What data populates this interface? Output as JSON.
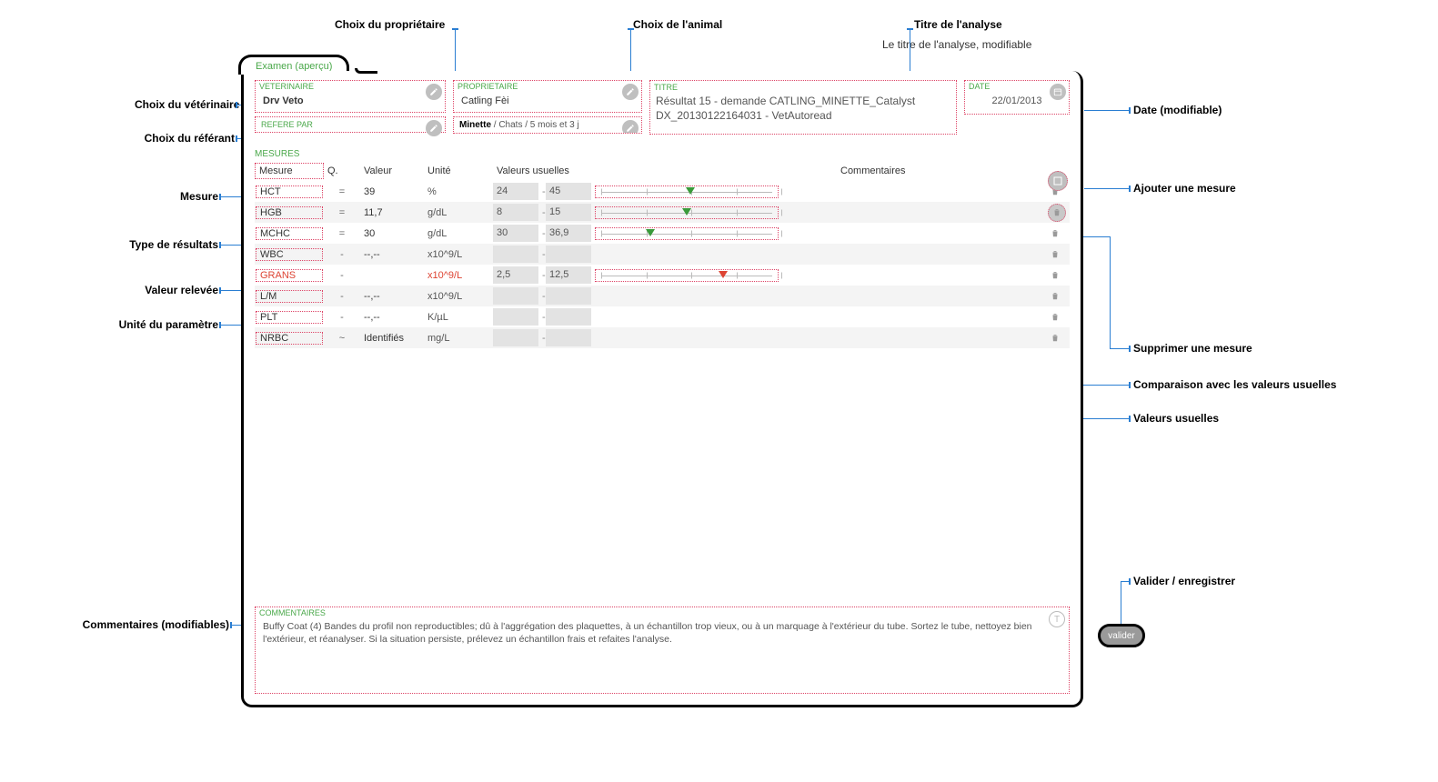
{
  "tab_label": "Examen (aperçu)",
  "callouts": {
    "vet": "Choix du vétérinaire",
    "ref": "Choix du référant",
    "owner": "Choix du propriétaire",
    "animal": "Choix de l'animal",
    "title": "Titre de l'analyse",
    "title_sub": "Le titre de l'analyse, modifiable",
    "date": "Date (modifiable)",
    "mesure": "Mesure",
    "type": "Type de résultats",
    "valeur": "Valeur relevée",
    "unite": "Unité du paramètre",
    "add": "Ajouter une mesure",
    "del": "Supprimer une mesure",
    "compare": "Comparaison avec les valeurs usuelles",
    "usual": "Valeurs usuelles",
    "comments": "Commentaires (modifiables)",
    "valider": "Valider / enregistrer"
  },
  "fields": {
    "vet_label": "VETERINAIRE",
    "vet_value": "Drv Veto",
    "ref_label": "REFERE PAR",
    "ref_value": "",
    "owner_label": "PROPRIETAIRE",
    "owner_value": "Catling Fèi",
    "animal_name": "Minette",
    "animal_detail": " / Chats / 5 mois et 3 j",
    "titre_label": "TITRE",
    "titre_value": "Résultat 15 - demande CATLING_MINETTE_Catalyst DX_20130122164031 - VetAutoread",
    "date_label": "DATE",
    "date_value": "22/01/2013"
  },
  "mesures": {
    "section_label": "MESURES",
    "hdr_mesure": "Mesure",
    "hdr_q": "Q.",
    "hdr_valeur": "Valeur",
    "hdr_unite": "Unité",
    "hdr_usual": "Valeurs usuelles",
    "hdr_comment": "Commentaires",
    "rows": [
      {
        "name": "HCT",
        "q": "=",
        "val": "39",
        "unit": "%",
        "lo": "24",
        "hi": "45",
        "marker": 0.52,
        "mkclass": "",
        "abn": false
      },
      {
        "name": "HGB",
        "q": "=",
        "val": "11,7",
        "unit": "g/dL",
        "lo": "8",
        "hi": "15",
        "marker": 0.5,
        "mkclass": "",
        "abn": false
      },
      {
        "name": "MCHC",
        "q": "=",
        "val": "30",
        "unit": "g/dL",
        "lo": "30",
        "hi": "36,9",
        "marker": 0.3,
        "mkclass": "",
        "abn": false
      },
      {
        "name": "WBC",
        "q": "-",
        "val": "--,--",
        "unit": "x10^9/L",
        "lo": "",
        "hi": "",
        "marker": null,
        "mkclass": "",
        "abn": false
      },
      {
        "name": "GRANS",
        "q": "-",
        "val": "",
        "unit": "x10^9/L",
        "lo": "2,5",
        "hi": "12,5",
        "marker": 0.7,
        "mkclass": "red",
        "abn": true
      },
      {
        "name": "L/M",
        "q": "-",
        "val": "--,--",
        "unit": "x10^9/L",
        "lo": "",
        "hi": "",
        "marker": null,
        "mkclass": "",
        "abn": false
      },
      {
        "name": "PLT",
        "q": "-",
        "val": "--,--",
        "unit": "K/µL",
        "lo": "",
        "hi": "",
        "marker": null,
        "mkclass": "",
        "abn": false
      },
      {
        "name": "NRBC",
        "q": "~",
        "val": "Identifiés",
        "unit": "mg/L",
        "lo": "",
        "hi": "",
        "marker": null,
        "mkclass": "",
        "abn": false
      }
    ]
  },
  "comments_label": "COMMENTAIRES",
  "comments_text": "Buffy Coat (4)  Bandes du profil non reproductibles; dû à l'aggrégation des plaquettes,  à un échantillon trop vieux, ou à un marquage à l'extérieur du tube.  Sortez le tube, nettoyez bien l'extérieur, et réanalyser.  Si la  situation persiste, prélevez un échantillon frais et refaites l'analyse.",
  "valider_label": "valider",
  "colors": {
    "accent_green": "#4aa84a",
    "highlight_dotted": "#d46",
    "pointer": "#2a7ed2",
    "marker_ok": "#3a9a3a",
    "marker_bad": "#d43"
  }
}
